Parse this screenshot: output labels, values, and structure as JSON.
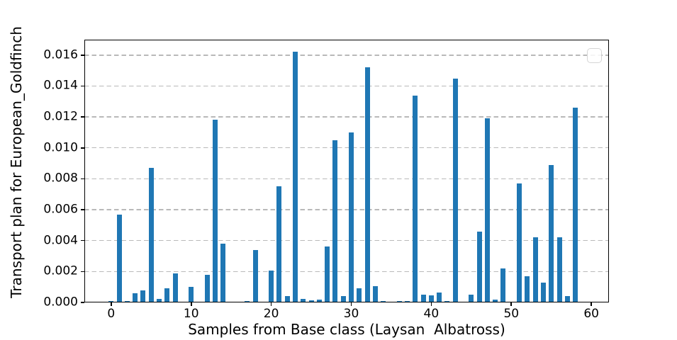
{
  "chart_data": {
    "type": "bar",
    "title": "",
    "xlabel": "Samples from Base class (Laysan  Albatross)",
    "ylabel": "Transport plan for European_Goldfinch",
    "bar_color": "#1f77b4",
    "grid": "horizontal-dashed",
    "grid_color": "#b9b9b9",
    "legend": {
      "visible": true,
      "entries": [],
      "position": "upper right"
    },
    "xlim": [
      -3.35,
      62.2
    ],
    "ylim": [
      0,
      0.017
    ],
    "xticks": [
      0,
      10,
      20,
      30,
      40,
      50,
      60
    ],
    "yticks": [
      0,
      0.002,
      0.004,
      0.006,
      0.008,
      0.01,
      0.012,
      0.014,
      0.016
    ],
    "ytick_labels": [
      "0.000",
      "0.002",
      "0.004",
      "0.006",
      "0.008",
      "0.010",
      "0.012",
      "0.014",
      "0.016"
    ],
    "x": [
      0,
      1,
      2,
      3,
      4,
      5,
      6,
      7,
      8,
      9,
      10,
      11,
      12,
      13,
      14,
      15,
      16,
      17,
      18,
      19,
      20,
      21,
      22,
      23,
      24,
      25,
      26,
      27,
      28,
      29,
      30,
      31,
      32,
      33,
      34,
      35,
      36,
      37,
      38,
      39,
      40,
      41,
      42,
      43,
      44,
      45,
      46,
      47,
      48,
      49,
      50,
      51,
      52,
      53,
      54,
      55,
      56,
      57,
      58,
      59,
      60
    ],
    "values": [
      0.0001,
      0.0057,
      0.0001,
      0.0006,
      0.0008,
      0.0087,
      0.00025,
      0.0009,
      0.0019,
      0,
      0.001,
      0,
      0.0018,
      0.0118,
      0.0038,
      0,
      0,
      0.0001,
      0.0034,
      5e-05,
      0.00205,
      0.0075,
      0.0004,
      0.0162,
      0.00025,
      0.00015,
      0.0002,
      0.0036,
      0.0105,
      0.0004,
      0.011,
      0.0009,
      0.0152,
      0.00105,
      0.0001,
      0,
      0.0001,
      0.0001,
      0.0134,
      0.0005,
      0.00045,
      0.00065,
      0.0001,
      0.0145,
      0,
      0.0005,
      0.0046,
      0.0119,
      0.0002,
      0.0022,
      0,
      0.0077,
      0.0017,
      0.0042,
      0.0013,
      0.0089,
      0.0042,
      0.0004,
      0.0126,
      5e-05,
      0
    ]
  }
}
